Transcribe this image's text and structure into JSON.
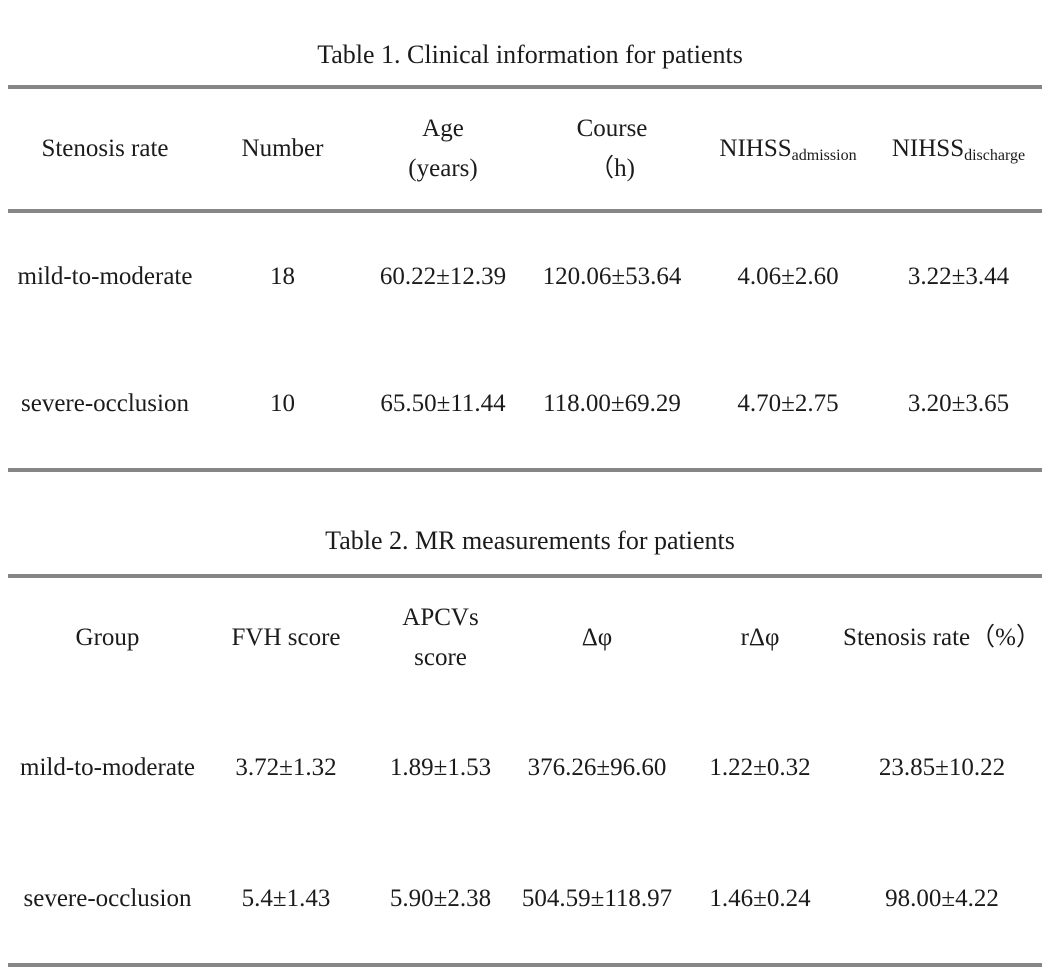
{
  "page": {
    "background": "#ffffff",
    "text_color": "#1b1b1b",
    "rule_color": "#868686"
  },
  "table1": {
    "title": "Table 1. Clinical information for patients",
    "columns": [
      {
        "line1": "Stenosis rate"
      },
      {
        "line1": "Number"
      },
      {
        "line1": "Age",
        "line2": "(years)"
      },
      {
        "line1": "Course",
        "line2": "（h)"
      },
      {
        "base": "NIHSS",
        "sub": "admission"
      },
      {
        "base": "NIHSS",
        "sub": "discharge"
      }
    ],
    "rows": [
      {
        "cells": [
          "mild-to-moderate",
          "18",
          "60.22±12.39",
          "120.06±53.64",
          "4.06±2.60",
          "3.22±3.44"
        ]
      },
      {
        "cells": [
          "severe-occlusion",
          "10",
          "65.50±11.44",
          "118.00±69.29",
          "4.70±2.75",
          "3.20±3.65"
        ]
      }
    ]
  },
  "table2": {
    "title": "Table 2. MR measurements for patients",
    "columns": [
      {
        "line1": "Group"
      },
      {
        "line1": "FVH score"
      },
      {
        "line1": "APCVs",
        "line2": "score"
      },
      {
        "line1": "Δφ"
      },
      {
        "line1": "rΔφ"
      },
      {
        "line1": "Stenosis rate（%）"
      }
    ],
    "rows": [
      {
        "cells": [
          "mild-to-moderate",
          "3.72±1.32",
          "1.89±1.53",
          "376.26±96.60",
          "1.22±0.32",
          "23.85±10.22"
        ]
      },
      {
        "cells": [
          "severe-occlusion",
          "5.4±1.43",
          "5.90±2.38",
          "504.59±118.97",
          "1.46±0.24",
          "98.00±4.22"
        ]
      }
    ]
  }
}
